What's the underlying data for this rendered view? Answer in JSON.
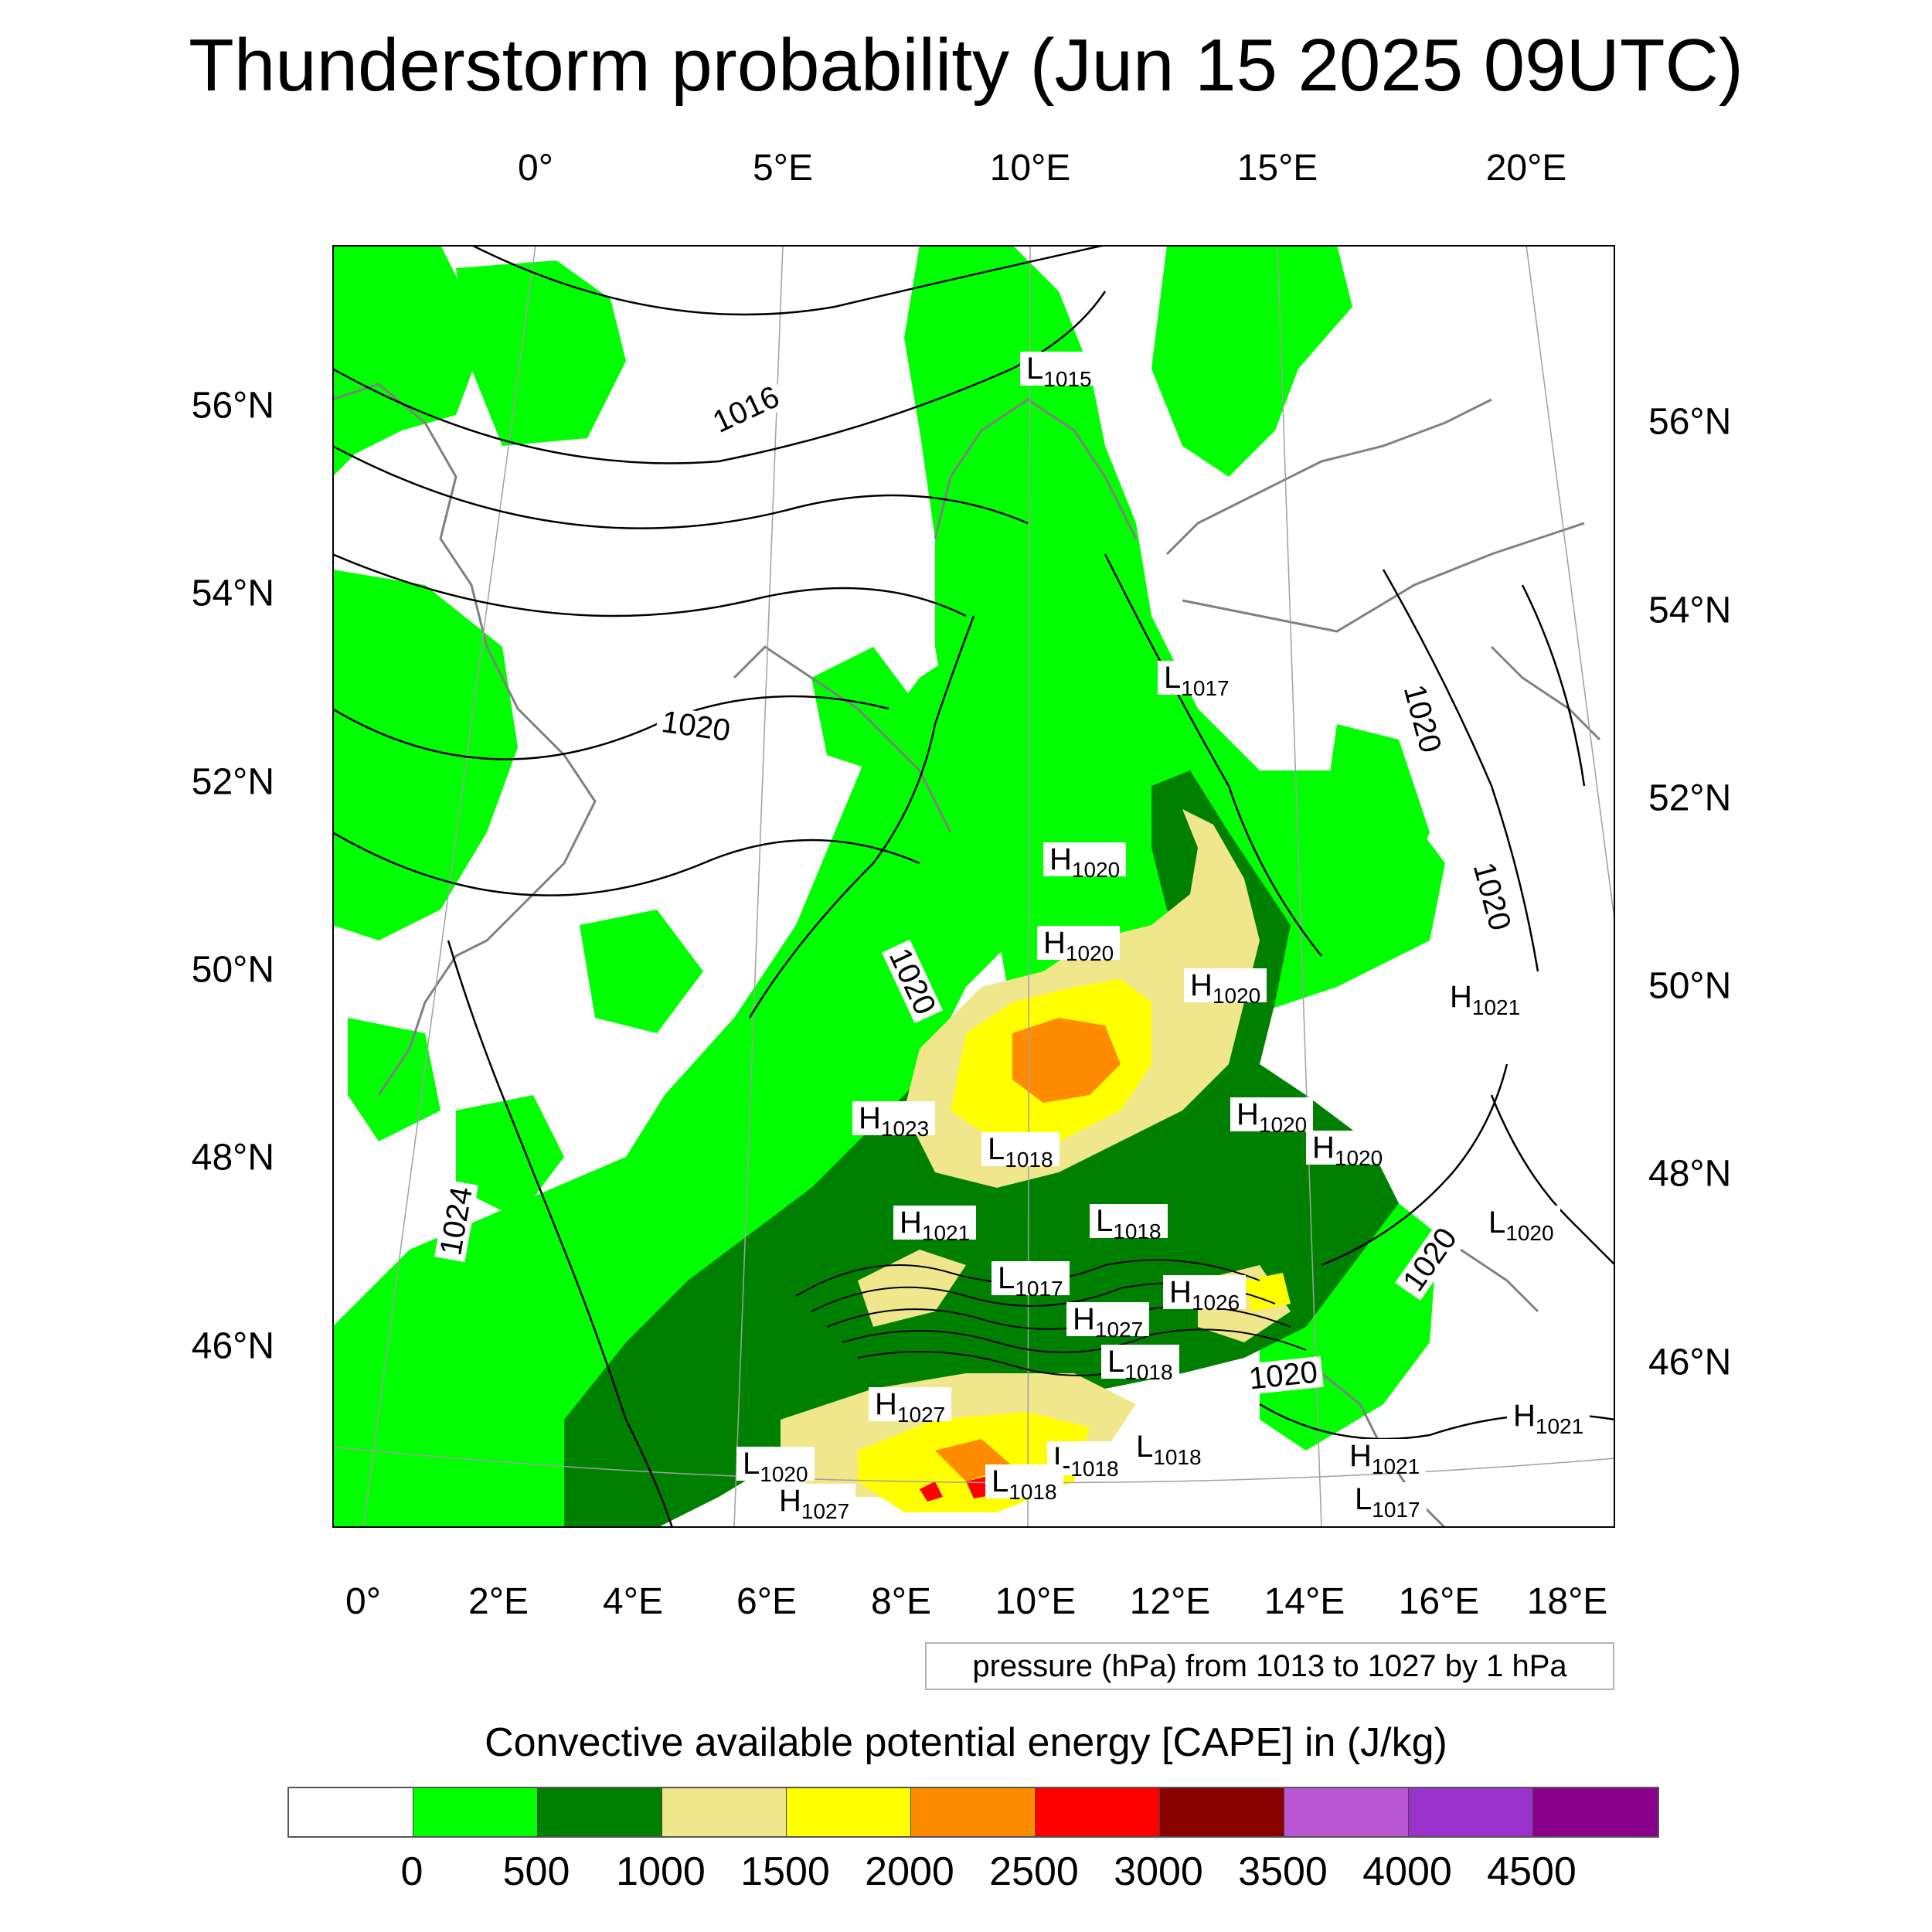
{
  "title": "Thunderstorm probability (Jun 15 2025 09UTC)",
  "top_ticks": [
    "0°",
    "5°E",
    "10°E",
    "15°E",
    "20°E"
  ],
  "bottom_ticks": [
    "0°",
    "2°E",
    "4°E",
    "6°E",
    "8°E",
    "10°E",
    "12°E",
    "14°E",
    "16°E",
    "18°E"
  ],
  "left_ticks": [
    "56°N",
    "54°N",
    "52°N",
    "50°N",
    "48°N",
    "46°N"
  ],
  "right_ticks": [
    "56°N",
    "54°N",
    "52°N",
    "50°N",
    "48°N",
    "46°N"
  ],
  "contour_info": "pressure (hPa) from 1013 to 1027 by 1 hPa",
  "colorbar": {
    "title": "Convective available potential energy [CAPE] in (J/kg)",
    "colors": [
      "#ffffff",
      "#00ff00",
      "#008000",
      "#f0e68c",
      "#ffff00",
      "#ff8c00",
      "#ff0000",
      "#8b0000",
      "#ba55d3",
      "#9932cc",
      "#8b008b"
    ],
    "labels": [
      "0",
      "500",
      "1000",
      "1500",
      "2000",
      "2500",
      "3000",
      "3500",
      "4000",
      "4500"
    ]
  },
  "isobar_labels": [
    "1016",
    "1020",
    "1020",
    "1024",
    "1020",
    "1020",
    "1020",
    "1020"
  ],
  "pressure_centers": [
    {
      "type": "L",
      "value": "1015"
    },
    {
      "type": "L",
      "value": "1017"
    },
    {
      "type": "H",
      "value": "1020"
    },
    {
      "type": "H",
      "value": "1020"
    },
    {
      "type": "H",
      "value": "1020"
    },
    {
      "type": "H",
      "value": "1021"
    },
    {
      "type": "H",
      "value": "1023"
    },
    {
      "type": "H",
      "value": "1020"
    },
    {
      "type": "H",
      "value": "1020"
    },
    {
      "type": "L",
      "value": "1018"
    },
    {
      "type": "H",
      "value": "1021"
    },
    {
      "type": "L",
      "value": "1018"
    },
    {
      "type": "L",
      "value": "1020"
    },
    {
      "type": "L",
      "value": "1017"
    },
    {
      "type": "H",
      "value": "1026"
    },
    {
      "type": "H",
      "value": "1027"
    },
    {
      "type": "L",
      "value": "1018"
    },
    {
      "type": "H",
      "value": "1027"
    },
    {
      "type": "H",
      "value": "1021"
    },
    {
      "type": "L",
      "value": "1018"
    },
    {
      "type": "L",
      "value": "1018"
    },
    {
      "type": "H",
      "value": "1021"
    },
    {
      "type": "L",
      "value": "1020"
    },
    {
      "type": "L",
      "value": "1018"
    },
    {
      "type": "H",
      "value": "1027"
    },
    {
      "type": "L",
      "value": "1017"
    }
  ]
}
